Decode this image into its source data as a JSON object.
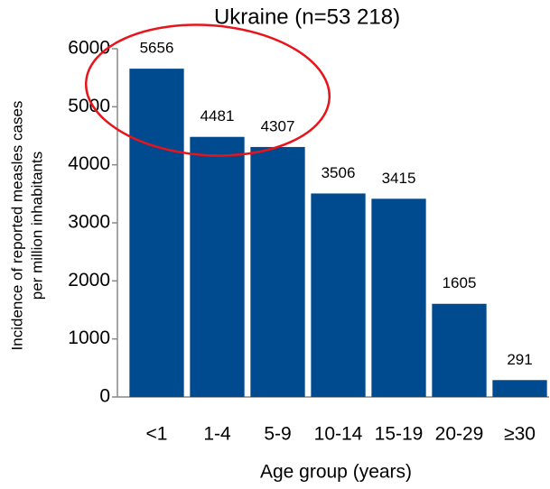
{
  "chart_data": {
    "type": "bar",
    "title": "Ukraine (n=53 218)",
    "xlabel": "Age group (years)",
    "ylabel": [
      "Incidence  of reported measles cases",
      "per million inhabitants"
    ],
    "categories": [
      "<1",
      "1-4",
      "5-9",
      "10-14",
      "15-19",
      "20-29",
      "≥30"
    ],
    "values": [
      5656,
      4481,
      4307,
      3506,
      3415,
      1605,
      291
    ],
    "color": "#004a8f",
    "ylim": [
      0,
      6000
    ],
    "yticks": [
      0,
      1000,
      2000,
      3000,
      4000,
      5000,
      6000
    ],
    "grid": false
  }
}
